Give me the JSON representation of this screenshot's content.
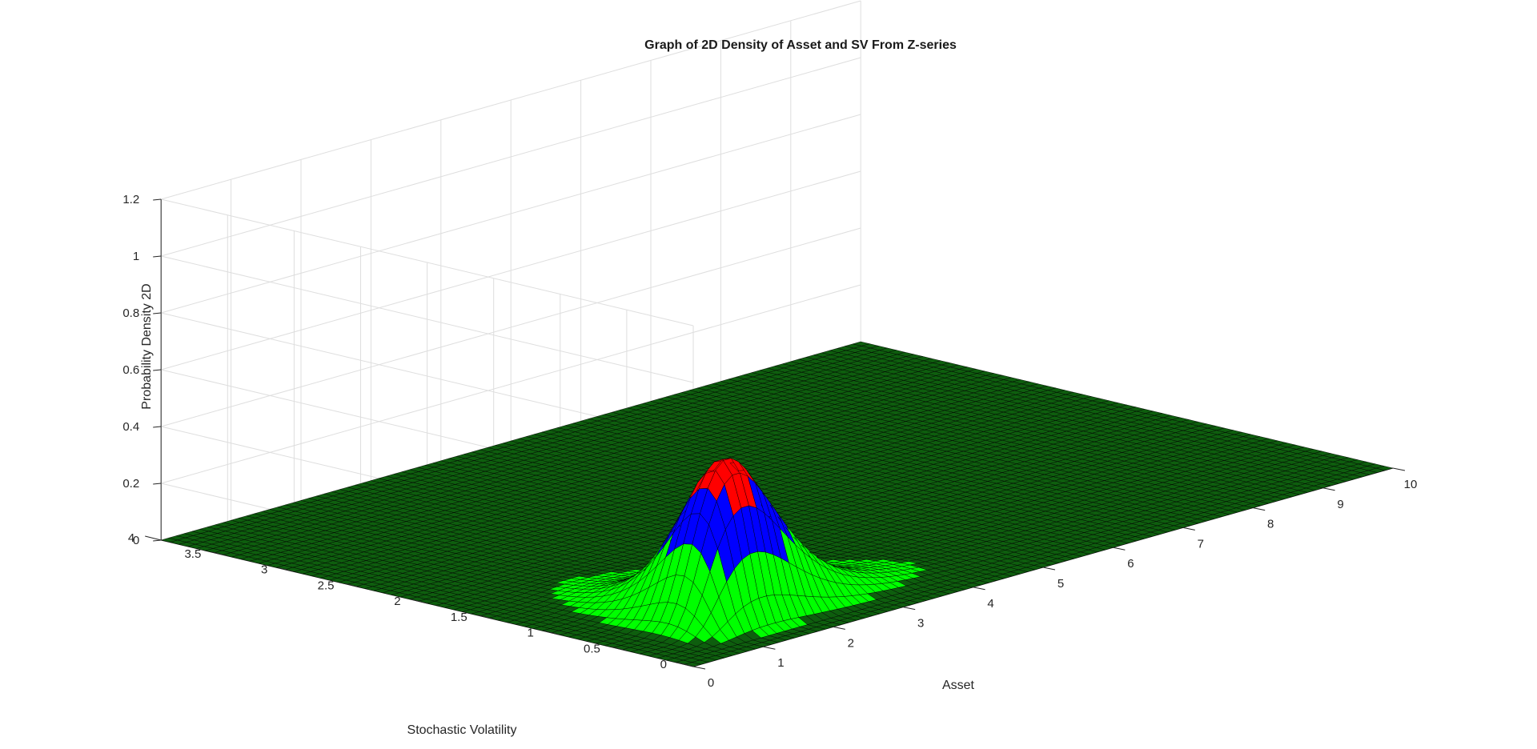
{
  "chart_data": {
    "type": "surface",
    "title": "Graph of 2D Density of Asset and SV From Z-series",
    "xlabel": "Asset",
    "ylabel": "Stochastic Volatility",
    "zlabel": "Probability Density 2D",
    "xlim": [
      0,
      10
    ],
    "ylim": [
      0,
      4
    ],
    "zlim": [
      0,
      1.2
    ],
    "xticks": [
      "0",
      "1",
      "2",
      "3",
      "4",
      "5",
      "6",
      "7",
      "8",
      "9",
      "10"
    ],
    "yticks": [
      "0",
      "0.5",
      "1",
      "1.5",
      "2",
      "2.5",
      "3",
      "3.5",
      "4"
    ],
    "zticks": [
      "0",
      "0.2",
      "0.4",
      "0.6",
      "0.8",
      "1",
      "1.2"
    ],
    "peak": {
      "asset": 1.5,
      "sv": 0.55,
      "density": 0.57
    },
    "color_bands": [
      {
        "min": 0.0,
        "max": 0.25,
        "color": "#00ff00"
      },
      {
        "min": 0.25,
        "max": 0.45,
        "color": "#0000ff"
      },
      {
        "min": 0.45,
        "max": 1.2,
        "color": "#ff0000"
      }
    ],
    "base_color": "#0e5e0e",
    "grid": true
  }
}
